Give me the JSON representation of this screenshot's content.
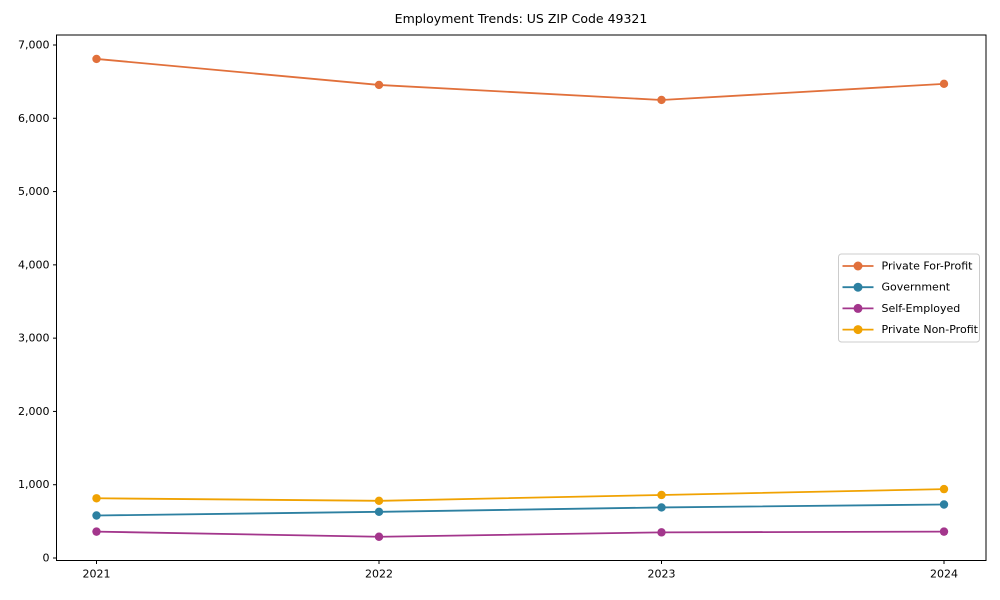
{
  "chart_data": {
    "type": "line",
    "title": "Employment Trends: US ZIP Code 49321",
    "xlabel": "",
    "ylabel": "",
    "categories": [
      "2021",
      "2022",
      "2023",
      "2024"
    ],
    "x": [
      2021,
      2022,
      2023,
      2024
    ],
    "yticks": [
      {
        "value": 0,
        "label": "0"
      },
      {
        "value": 1000,
        "label": "1,000"
      },
      {
        "value": 2000,
        "label": "2,000"
      },
      {
        "value": 3000,
        "label": "3,000"
      },
      {
        "value": 4000,
        "label": "4,000"
      },
      {
        "value": 5000,
        "label": "5,000"
      },
      {
        "value": 6000,
        "label": "6,000"
      },
      {
        "value": 7000,
        "label": "7,000"
      }
    ],
    "ylim": [
      0,
      7000
    ],
    "grid": false,
    "legend_position": "center-right",
    "marker": "circle",
    "series": [
      {
        "name": "Private For-Profit",
        "color": "#e1703b",
        "values": [
          6810,
          6455,
          6250,
          6470
        ]
      },
      {
        "name": "Government",
        "color": "#2d80a1",
        "values": [
          580,
          630,
          690,
          730
        ]
      },
      {
        "name": "Self-Employed",
        "color": "#a3368c",
        "values": [
          360,
          290,
          350,
          360
        ]
      },
      {
        "name": "Private Non-Profit",
        "color": "#f0a202",
        "values": [
          815,
          780,
          860,
          940
        ]
      }
    ]
  }
}
